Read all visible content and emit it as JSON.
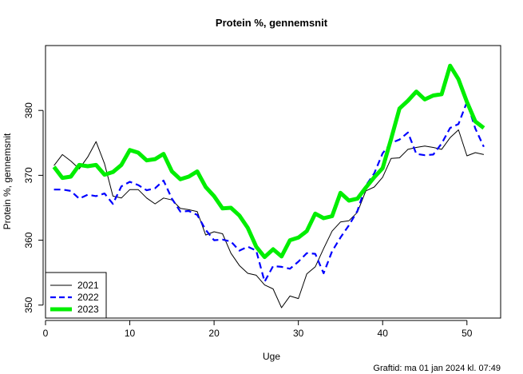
{
  "chart_data": {
    "type": "line",
    "title": "Protein %, gennemsnit",
    "xlabel": "Uge",
    "ylabel": "Protein %, gennemsnit",
    "xlim": [
      0,
      54
    ],
    "ylim": [
      348,
      390
    ],
    "xticks": [
      0,
      10,
      20,
      30,
      40,
      50
    ],
    "yticks": [
      350,
      360,
      370,
      380
    ],
    "grid": false,
    "legend_position": "bottom-left",
    "series": [
      {
        "name": "2021",
        "color": "#000000",
        "style": "solid",
        "width": "thin",
        "x": [
          1,
          2,
          3,
          4,
          5,
          6,
          7,
          8,
          9,
          10,
          11,
          12,
          13,
          14,
          15,
          16,
          17,
          18,
          19,
          20,
          21,
          22,
          23,
          24,
          25,
          26,
          27,
          28,
          29,
          30,
          31,
          32,
          33,
          34,
          35,
          36,
          37,
          38,
          39,
          40,
          41,
          42,
          43,
          44,
          45,
          46,
          47,
          48,
          49,
          50,
          51,
          52
        ],
        "y": [
          371.5,
          373.2,
          372.2,
          371.0,
          372.8,
          375.2,
          371.8,
          366.8,
          366.5,
          367.8,
          367.8,
          366.5,
          365.6,
          366.5,
          366.2,
          364.9,
          364.7,
          364.4,
          360.8,
          361.3,
          361.0,
          358.0,
          356.1,
          354.9,
          354.6,
          353.1,
          352.5,
          349.6,
          351.4,
          351.0,
          354.8,
          355.9,
          358.7,
          361.4,
          362.8,
          363.0,
          364.3,
          367.6,
          368.2,
          369.7,
          372.6,
          372.7,
          374.0,
          374.3,
          374.5,
          374.3,
          374.0,
          375.8,
          377.0,
          373.0,
          373.5,
          373.2
        ]
      },
      {
        "name": "2022",
        "color": "#0000ff",
        "style": "dashed",
        "width": "medium",
        "x": [
          1,
          2,
          3,
          4,
          5,
          6,
          7,
          8,
          9,
          10,
          11,
          12,
          13,
          14,
          15,
          16,
          17,
          18,
          19,
          20,
          21,
          22,
          23,
          24,
          25,
          26,
          27,
          28,
          29,
          30,
          31,
          32,
          33,
          34,
          35,
          36,
          37,
          38,
          39,
          40,
          41,
          42,
          43,
          44,
          45,
          46,
          47,
          48,
          49,
          50,
          51,
          52
        ],
        "y": [
          367.8,
          367.8,
          367.6,
          366.4,
          367.0,
          366.8,
          367.2,
          365.6,
          368.3,
          369.0,
          368.5,
          367.7,
          368.0,
          369.2,
          366.4,
          364.4,
          364.5,
          363.9,
          361.6,
          360.0,
          360.1,
          359.8,
          358.4,
          359.0,
          358.4,
          353.6,
          356.0,
          355.9,
          355.6,
          356.7,
          358.0,
          357.9,
          354.9,
          358.3,
          360.4,
          362.3,
          364.5,
          368.4,
          370.3,
          373.4,
          375.0,
          375.5,
          376.6,
          373.3,
          373.1,
          373.2,
          374.9,
          377.3,
          377.9,
          381.3,
          377.2,
          374.4
        ]
      },
      {
        "name": "2023",
        "color": "#00ee00",
        "style": "solid",
        "width": "thick",
        "x": [
          1,
          2,
          3,
          4,
          5,
          6,
          7,
          8,
          9,
          10,
          11,
          12,
          13,
          14,
          15,
          16,
          17,
          18,
          19,
          20,
          21,
          22,
          23,
          24,
          25,
          26,
          27,
          28,
          29,
          30,
          31,
          32,
          33,
          34,
          35,
          36,
          37,
          38,
          39,
          40,
          41,
          42,
          43,
          44,
          45,
          46,
          47,
          48,
          49,
          50,
          51,
          52
        ],
        "y": [
          371.3,
          369.6,
          369.8,
          371.6,
          371.4,
          371.6,
          370.1,
          370.5,
          371.6,
          373.9,
          373.5,
          372.3,
          372.5,
          373.3,
          370.6,
          369.4,
          369.8,
          370.6,
          368.2,
          366.8,
          364.9,
          365.0,
          363.8,
          361.9,
          359.0,
          357.4,
          358.6,
          357.5,
          360.0,
          360.4,
          361.4,
          364.1,
          363.4,
          363.7,
          367.3,
          366.1,
          366.4,
          368.1,
          369.7,
          371.1,
          375.6,
          380.3,
          381.5,
          382.9,
          381.7,
          382.3,
          382.5,
          386.9,
          384.8,
          381.3,
          378.3,
          377.3
        ]
      }
    ],
    "footer": "Graftid: ma 01 jan 2024 kl. 07:49"
  }
}
